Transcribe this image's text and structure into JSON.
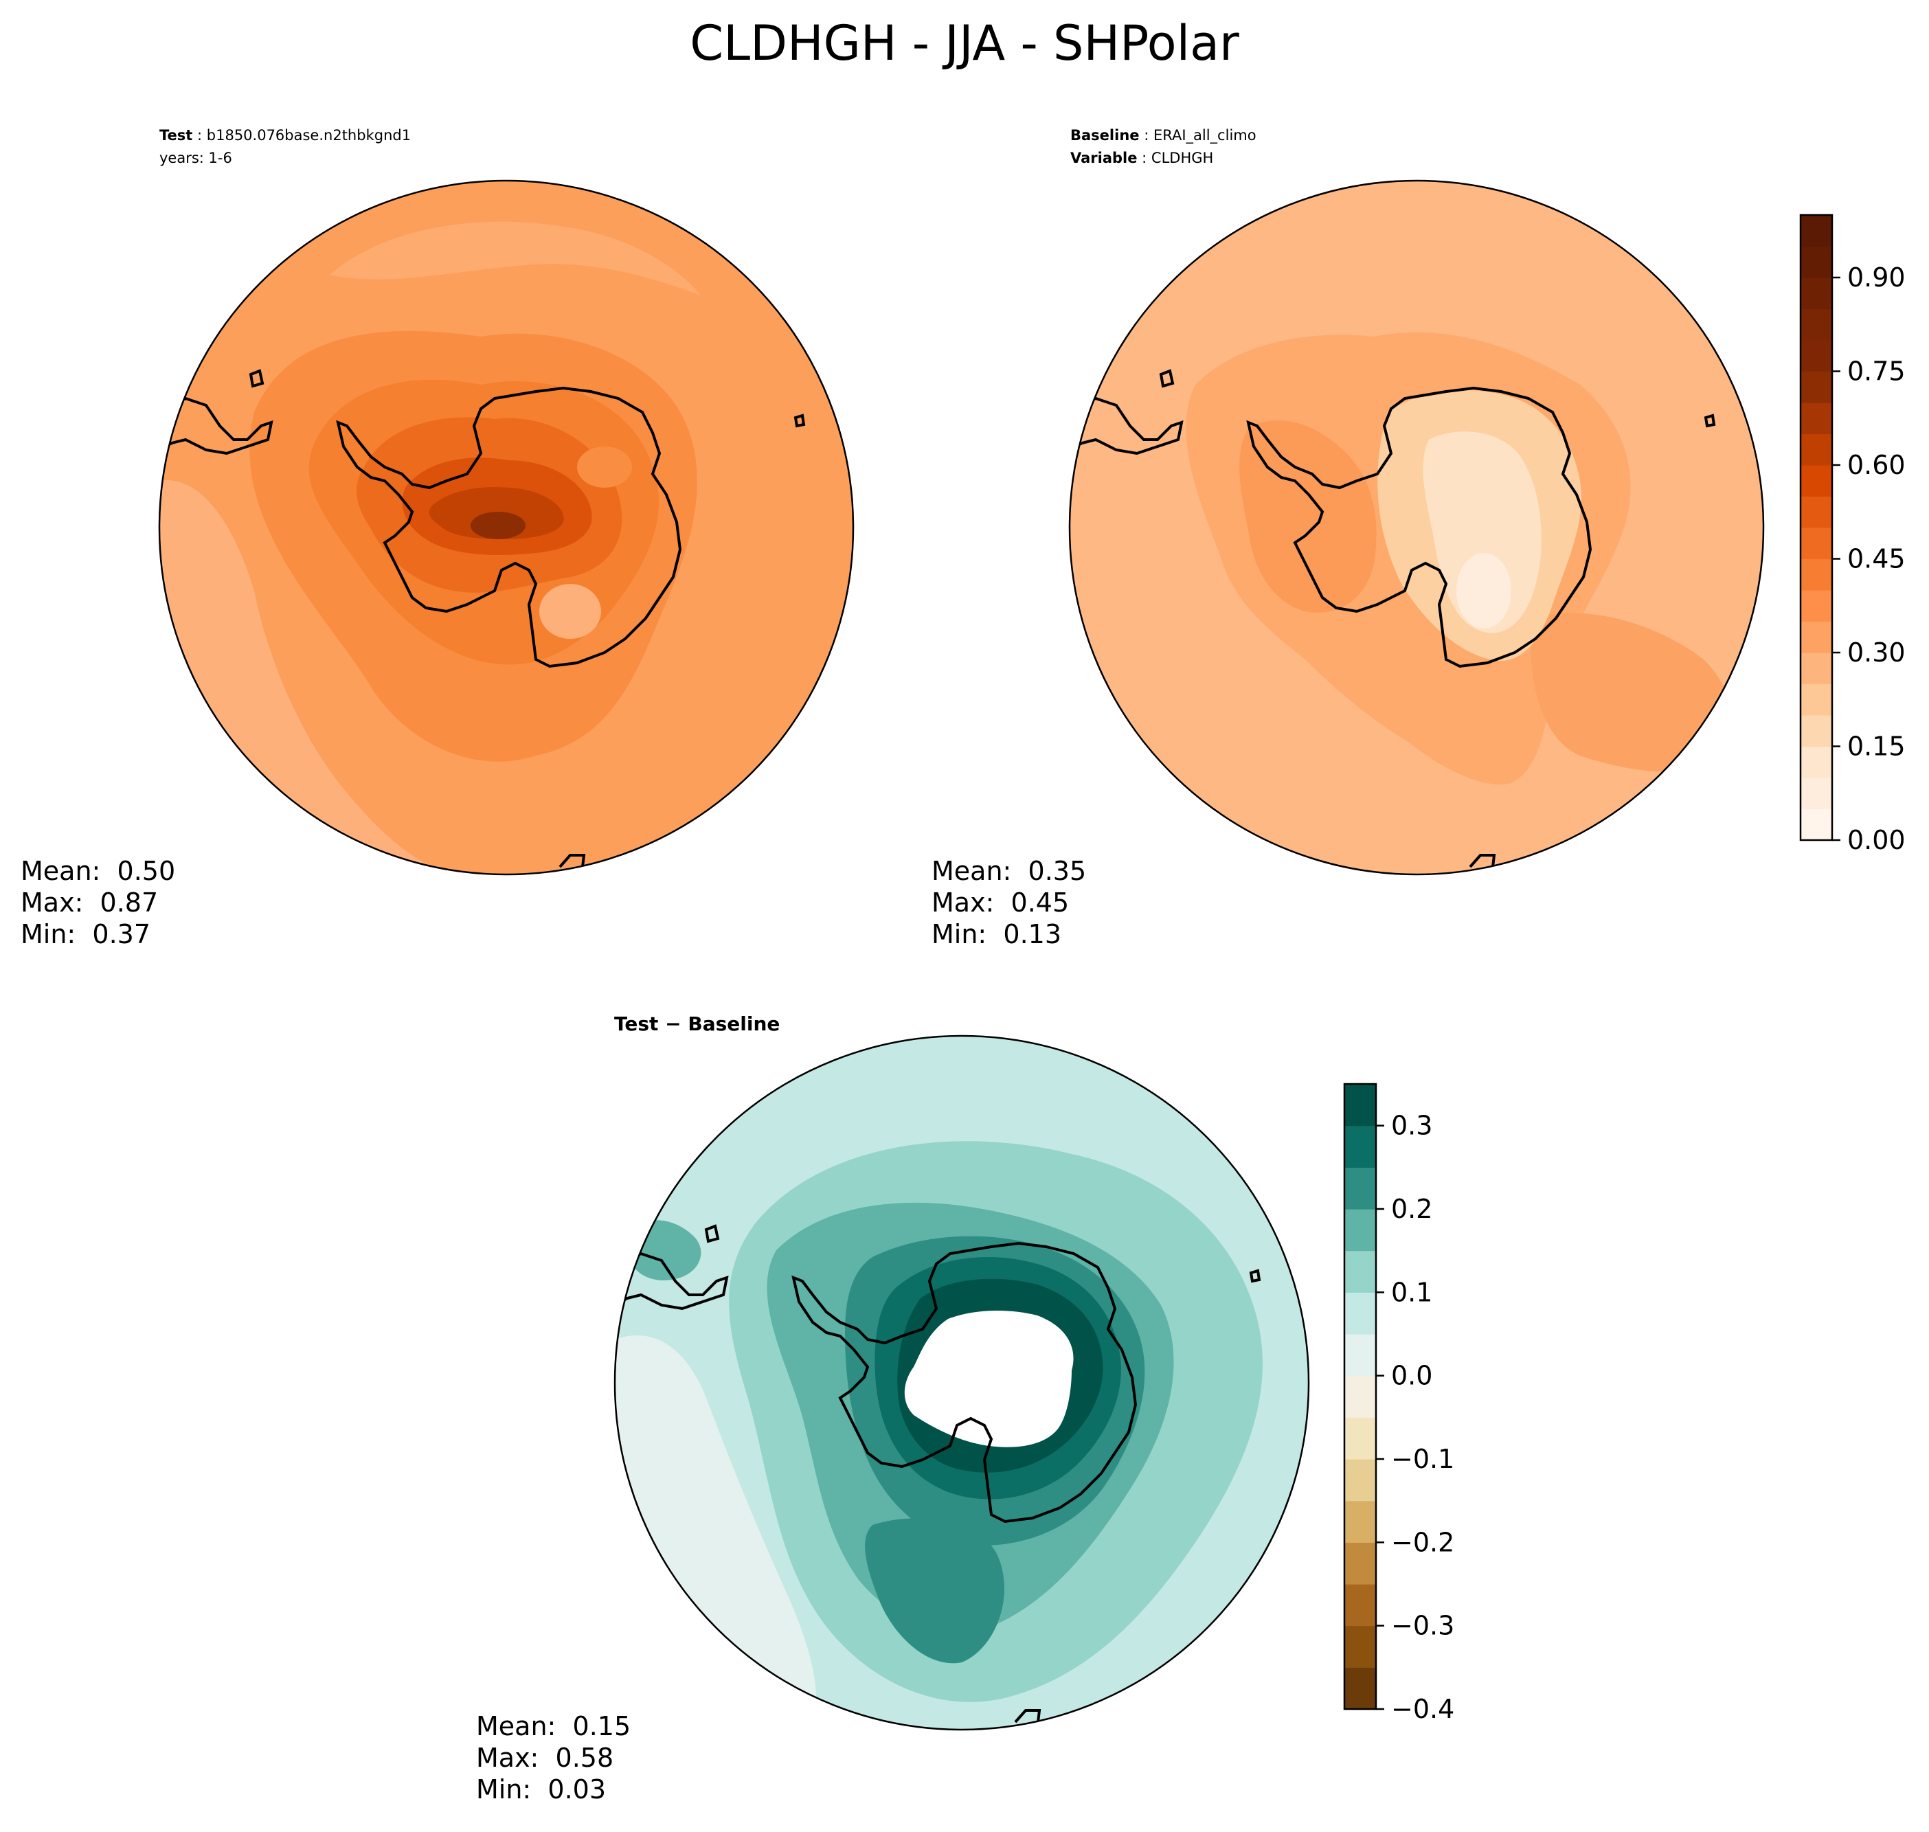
{
  "title": "CLDHGH - JJA - SHPolar",
  "panels": {
    "test": {
      "header_label": "Test",
      "header_value": "b1850.076base.n2thbkgnd1",
      "header_line2": "years: 1-6",
      "stats": {
        "mean_label": "Mean:",
        "mean": "0.50",
        "max_label": "Max:",
        "max": "0.87",
        "min_label": "Min:",
        "min": "0.37"
      }
    },
    "baseline": {
      "header_label": "Baseline",
      "header_value": "ERAI_all_climo",
      "header_label2": "Variable",
      "header_value2": "CLDHGH",
      "stats": {
        "mean_label": "Mean:",
        "mean": "0.35",
        "max_label": "Max:",
        "max": "0.45",
        "min_label": "Min:",
        "min": "0.13"
      }
    },
    "diff": {
      "header_label": "Test − Baseline",
      "stats": {
        "mean_label": "Mean:",
        "mean": "0.15",
        "max_label": "Max:",
        "max": "0.58",
        "min_label": "Min:",
        "min": "0.03"
      }
    }
  },
  "chart_data": [
    {
      "type": "heatmap",
      "name": "test",
      "projection": "south polar stereographic",
      "variable": "CLDHGH",
      "season": "JJA",
      "colormap": "Oranges",
      "colorbar": "shared with baseline",
      "mean": 0.5,
      "max": 0.87,
      "min": 0.37
    },
    {
      "type": "heatmap",
      "name": "baseline",
      "projection": "south polar stereographic",
      "variable": "CLDHGH",
      "season": "JJA",
      "colormap": "Oranges",
      "mean": 0.35,
      "max": 0.45,
      "min": 0.13,
      "colorbar": {
        "range": [
          0.0,
          1.0
        ],
        "ticks": [
          0.0,
          0.15,
          0.3,
          0.45,
          0.6,
          0.75,
          0.9
        ],
        "tick_labels": [
          "0.00",
          "0.15",
          "0.30",
          "0.45",
          "0.60",
          "0.75",
          "0.90"
        ],
        "levels": 20,
        "colors": [
          "#fff5eb",
          "#feeddc",
          "#fee6ce",
          "#fdd7b0",
          "#fdc895",
          "#fdb57d",
          "#fda262",
          "#fd8f4a",
          "#f77d33",
          "#ef6b21",
          "#e55a11",
          "#d94801",
          "#c04001",
          "#a63603",
          "#8c2d04",
          "#7f2704",
          "#7a2504",
          "#6f2104",
          "#631d03",
          "#5a1a03"
        ]
      }
    },
    {
      "type": "heatmap",
      "name": "difference",
      "projection": "south polar stereographic",
      "variable": "CLDHGH",
      "season": "JJA",
      "colormap": "BrBG",
      "mean": 0.15,
      "max": 0.58,
      "min": 0.03,
      "colorbar": {
        "range": [
          -0.4,
          0.35
        ],
        "ticks": [
          -0.4,
          -0.3,
          -0.2,
          -0.1,
          0.0,
          0.1,
          0.2,
          0.3
        ],
        "tick_labels": [
          "−0.4",
          "−0.3",
          "−0.2",
          "−0.1",
          "0.0",
          "0.1",
          "0.2",
          "0.3"
        ],
        "bounds": [
          -0.4,
          -0.35,
          -0.3,
          -0.25,
          -0.2,
          -0.15,
          -0.1,
          -0.05,
          0.0,
          0.05,
          0.1,
          0.15,
          0.2,
          0.25,
          0.3,
          0.35
        ],
        "colors": [
          "#6b3c09",
          "#8a510f",
          "#a8671f",
          "#c28a3c",
          "#d7b065",
          "#e7ce92",
          "#f2e5bd",
          "#f4efe0",
          "#e4f1ef",
          "#c4e8e3",
          "#95d4c9",
          "#5fb3a7",
          "#2f8e84",
          "#0b6f66",
          "#01534a"
        ]
      }
    }
  ]
}
